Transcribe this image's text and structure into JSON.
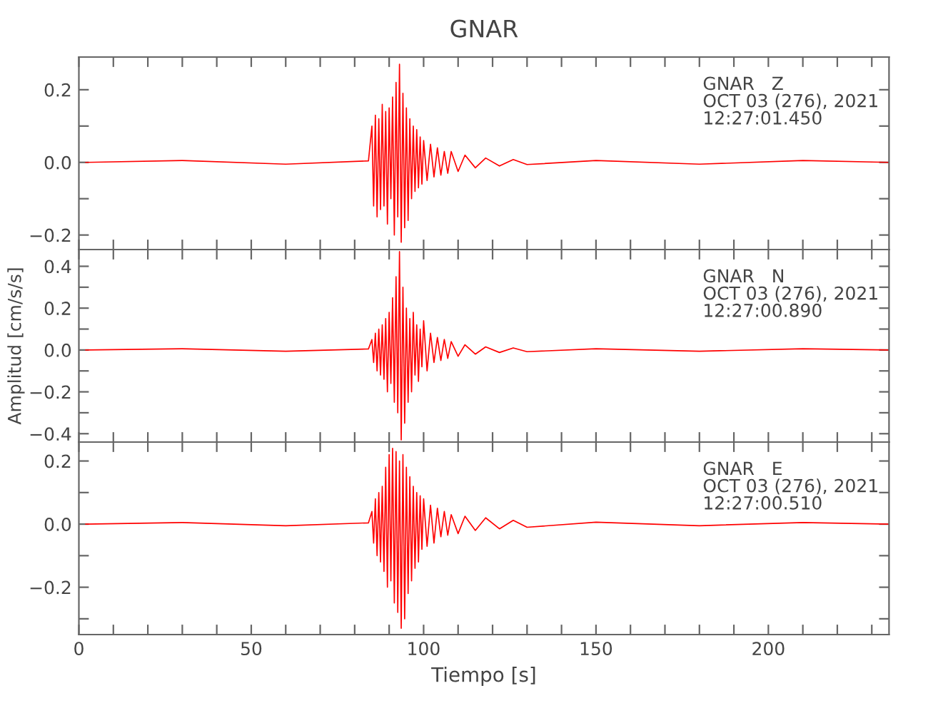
{
  "chart_data": [
    {
      "type": "line",
      "title": "GNAR",
      "annotations": [
        "GNAR   Z\nOCT 03 (276), 2021\n12:27:01.450"
      ],
      "tick_labels": "y",
      "xlim": [
        0,
        235
      ],
      "ylim": [
        -0.24,
        0.29
      ],
      "xticks": [
        {
          "value": 0,
          "label": null
        },
        {
          "value": 10,
          "label": null
        },
        {
          "value": 20,
          "label": null
        },
        {
          "value": 30,
          "label": null
        },
        {
          "value": 40,
          "label": null
        },
        {
          "value": 50,
          "label": null
        },
        {
          "value": 60,
          "label": null
        },
        {
          "value": 70,
          "label": null
        },
        {
          "value": 80,
          "label": null
        },
        {
          "value": 90,
          "label": null
        },
        {
          "value": 100,
          "label": null
        },
        {
          "value": 110,
          "label": null
        },
        {
          "value": 120,
          "label": null
        },
        {
          "value": 130,
          "label": null
        },
        {
          "value": 140,
          "label": null
        },
        {
          "value": 150,
          "label": null
        },
        {
          "value": 160,
          "label": null
        },
        {
          "value": 170,
          "label": null
        },
        {
          "value": 180,
          "label": null
        },
        {
          "value": 190,
          "label": null
        },
        {
          "value": 200,
          "label": null
        },
        {
          "value": 210,
          "label": null
        },
        {
          "value": 220,
          "label": null
        },
        {
          "value": 230,
          "label": null
        }
      ],
      "yticks": [
        {
          "value": -0.2,
          "label": "−0.2"
        },
        {
          "value": -0.1,
          "label": null
        },
        {
          "value": 0,
          "label": "0.0"
        },
        {
          "value": 0.1,
          "label": null
        },
        {
          "value": 0.2,
          "label": "0.2"
        }
      ],
      "series": [
        {
          "color": "#ff0000",
          "x": [
            2,
            30,
            60,
            84,
            85,
            85.5,
            86,
            86.5,
            87,
            87.5,
            88,
            88.5,
            89,
            89.5,
            90,
            90.5,
            91,
            91.5,
            92,
            92.5,
            93,
            93.5,
            94,
            94.5,
            95,
            95.5,
            96,
            96.5,
            97,
            97.5,
            98,
            98.5,
            99,
            99.5,
            100,
            101,
            102,
            103,
            104,
            105,
            106,
            107,
            108,
            110,
            112,
            115,
            118,
            122,
            126,
            130,
            150,
            180,
            210,
            235
          ],
          "values": [
            0,
            0.005,
            -0.005,
            0.004,
            0.1,
            -0.12,
            0.13,
            -0.15,
            0.12,
            -0.13,
            0.16,
            -0.12,
            0.14,
            -0.17,
            0.15,
            -0.1,
            0.18,
            -0.2,
            0.22,
            -0.15,
            0.27,
            -0.22,
            0.19,
            -0.18,
            0.15,
            -0.16,
            0.12,
            -0.1,
            0.1,
            -0.08,
            0.09,
            -0.07,
            0.07,
            -0.06,
            0.06,
            -0.05,
            0.05,
            -0.04,
            0.04,
            -0.035,
            0.03,
            -0.03,
            0.03,
            -0.025,
            0.02,
            -0.015,
            0.012,
            -0.01,
            0.008,
            -0.006,
            0.005,
            -0.005,
            0.005,
            0
          ]
        }
      ]
    },
    {
      "type": "line",
      "ylabel": "Amplitud [cm/s/s]",
      "annotations": [
        "GNAR   N\nOCT 03 (276), 2021\n12:27:00.890"
      ],
      "tick_labels": "y",
      "xlim": [
        0,
        235
      ],
      "ylim": [
        -0.44,
        0.48
      ],
      "xticks": [
        {
          "value": 0,
          "label": null
        },
        {
          "value": 10,
          "label": null
        },
        {
          "value": 20,
          "label": null
        },
        {
          "value": 30,
          "label": null
        },
        {
          "value": 40,
          "label": null
        },
        {
          "value": 50,
          "label": null
        },
        {
          "value": 60,
          "label": null
        },
        {
          "value": 70,
          "label": null
        },
        {
          "value": 80,
          "label": null
        },
        {
          "value": 90,
          "label": null
        },
        {
          "value": 100,
          "label": null
        },
        {
          "value": 110,
          "label": null
        },
        {
          "value": 120,
          "label": null
        },
        {
          "value": 130,
          "label": null
        },
        {
          "value": 140,
          "label": null
        },
        {
          "value": 150,
          "label": null
        },
        {
          "value": 160,
          "label": null
        },
        {
          "value": 170,
          "label": null
        },
        {
          "value": 180,
          "label": null
        },
        {
          "value": 190,
          "label": null
        },
        {
          "value": 200,
          "label": null
        },
        {
          "value": 210,
          "label": null
        },
        {
          "value": 220,
          "label": null
        },
        {
          "value": 230,
          "label": null
        }
      ],
      "yticks": [
        {
          "value": -0.4,
          "label": "−0.4"
        },
        {
          "value": -0.3,
          "label": null
        },
        {
          "value": -0.2,
          "label": "−0.2"
        },
        {
          "value": -0.1,
          "label": null
        },
        {
          "value": 0,
          "label": "0.0"
        },
        {
          "value": 0.1,
          "label": null
        },
        {
          "value": 0.2,
          "label": "0.2"
        },
        {
          "value": 0.3,
          "label": null
        },
        {
          "value": 0.4,
          "label": "0.4"
        }
      ],
      "series": [
        {
          "color": "#ff0000",
          "x": [
            2,
            30,
            60,
            84,
            85,
            85.5,
            86,
            86.5,
            87,
            87.5,
            88,
            88.5,
            89,
            89.5,
            90,
            90.5,
            91,
            91.5,
            92,
            92.5,
            93,
            93.5,
            94,
            94.5,
            95,
            95.5,
            96,
            96.5,
            97,
            97.5,
            98,
            98.5,
            99,
            99.5,
            100,
            101,
            102,
            103,
            104,
            105,
            106,
            107,
            108,
            110,
            112,
            115,
            118,
            122,
            126,
            130,
            150,
            180,
            210,
            235
          ],
          "values": [
            0,
            0.006,
            -0.006,
            0.005,
            0.05,
            -0.06,
            0.08,
            -0.1,
            0.1,
            -0.12,
            0.12,
            -0.14,
            0.15,
            -0.2,
            0.18,
            -0.16,
            0.25,
            -0.25,
            0.35,
            -0.3,
            0.47,
            -0.43,
            0.3,
            -0.35,
            0.2,
            -0.25,
            0.15,
            -0.2,
            0.18,
            -0.12,
            0.12,
            -0.15,
            0.1,
            -0.08,
            0.14,
            -0.1,
            0.08,
            -0.06,
            0.06,
            -0.05,
            0.05,
            -0.04,
            0.04,
            -0.03,
            0.025,
            -0.02,
            0.015,
            -0.012,
            0.01,
            -0.008,
            0.006,
            -0.006,
            0.006,
            0
          ]
        }
      ]
    },
    {
      "type": "line",
      "xlabel": "Tiempo [s]",
      "annotations": [
        "GNAR   E\nOCT 03 (276), 2021\n12:27:00.510"
      ],
      "xlim": [
        0,
        235
      ],
      "ylim": [
        -0.35,
        0.26
      ],
      "xticks": [
        0,
        {
          "value": 10,
          "label": null
        },
        {
          "value": 20,
          "label": null
        },
        {
          "value": 30,
          "label": null
        },
        {
          "value": 40,
          "label": null
        },
        50,
        {
          "value": 60,
          "label": null
        },
        {
          "value": 70,
          "label": null
        },
        {
          "value": 80,
          "label": null
        },
        {
          "value": 90,
          "label": null
        },
        100,
        {
          "value": 110,
          "label": null
        },
        {
          "value": 120,
          "label": null
        },
        {
          "value": 130,
          "label": null
        },
        {
          "value": 140,
          "label": null
        },
        150,
        {
          "value": 160,
          "label": null
        },
        {
          "value": 170,
          "label": null
        },
        {
          "value": 180,
          "label": null
        },
        {
          "value": 190,
          "label": null
        },
        200,
        {
          "value": 210,
          "label": null
        },
        {
          "value": 220,
          "label": null
        },
        {
          "value": 230,
          "label": null
        }
      ],
      "yticks": [
        {
          "value": -0.3,
          "label": null
        },
        {
          "value": -0.2,
          "label": "−0.2"
        },
        {
          "value": -0.1,
          "label": null
        },
        {
          "value": 0,
          "label": "0.0"
        },
        {
          "value": 0.1,
          "label": null
        },
        {
          "value": 0.2,
          "label": "0.2"
        }
      ],
      "series": [
        {
          "color": "#ff0000",
          "x": [
            2,
            30,
            60,
            84,
            85,
            85.5,
            86,
            86.5,
            87,
            87.5,
            88,
            88.5,
            89,
            89.5,
            90,
            90.5,
            91,
            91.5,
            92,
            92.5,
            93,
            93.5,
            94,
            94.5,
            95,
            95.5,
            96,
            96.5,
            97,
            97.5,
            98,
            98.5,
            99,
            99.5,
            100,
            101,
            102,
            103,
            104,
            105,
            106,
            107,
            108,
            110,
            112,
            115,
            118,
            122,
            126,
            130,
            150,
            180,
            210,
            235
          ],
          "values": [
            0,
            0.005,
            -0.005,
            0.004,
            0.04,
            -0.06,
            0.08,
            -0.1,
            0.1,
            -0.12,
            0.12,
            -0.15,
            0.18,
            -0.2,
            0.22,
            -0.18,
            0.24,
            -0.25,
            0.23,
            -0.28,
            0.2,
            -0.33,
            0.22,
            -0.3,
            0.18,
            -0.22,
            0.15,
            -0.18,
            0.12,
            -0.14,
            0.1,
            -0.12,
            0.09,
            -0.08,
            0.08,
            -0.07,
            0.06,
            -0.06,
            0.05,
            -0.04,
            0.04,
            -0.035,
            0.03,
            -0.03,
            0.025,
            -0.02,
            0.02,
            -0.015,
            0.012,
            -0.01,
            0.006,
            -0.005,
            0.005,
            0
          ]
        }
      ]
    }
  ]
}
